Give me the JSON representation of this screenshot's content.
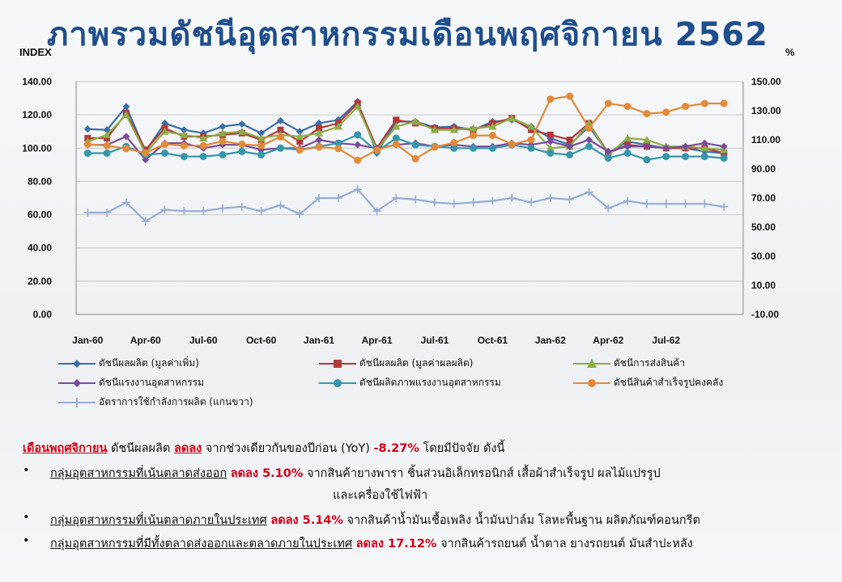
{
  "page": {
    "title": "ภาพรวมดัชนีอุตสาหกรรมเดือนพฤศจิกายน  2562",
    "left_unit": "INDEX",
    "right_unit": "%"
  },
  "chart_data": {
    "type": "line",
    "left_ylim": [
      0,
      140
    ],
    "right_ylim": [
      -10,
      150
    ],
    "left_ticks": [
      "0.00",
      "20.00",
      "40.00",
      "60.00",
      "80.00",
      "100.00",
      "120.00",
      "140.00"
    ],
    "right_ticks": [
      "-10.00",
      "10.00",
      "30.00",
      "50.00",
      "70.00",
      "90.00",
      "110.00",
      "130.00",
      "150.00"
    ],
    "x": [
      "Jan-60",
      "Feb-60",
      "Mar-60",
      "Apr-60",
      "May-60",
      "Jun-60",
      "Jul-60",
      "Aug-60",
      "Sep-60",
      "Oct-60",
      "Nov-60",
      "Dec-60",
      "Jan-61",
      "Feb-61",
      "Mar-61",
      "Apr-61",
      "May-61",
      "Jun-61",
      "Jul-61",
      "Aug-61",
      "Sep-61",
      "Oct-61",
      "Nov-61",
      "Dec-61",
      "Jan-62",
      "Feb-62",
      "Mar-62",
      "Apr-62",
      "May-62",
      "Jun-62",
      "Jul-62",
      "Aug-62",
      "Sep-62",
      "Oct-62"
    ],
    "x_tick_labels": [
      "Jan-60",
      "Apr-60",
      "Jul-60",
      "Oct-60",
      "Jan-61",
      "Apr-61",
      "Jul-61",
      "Oct-61",
      "Jan-62",
      "Apr-62",
      "Jul-62"
    ],
    "grid": true,
    "series": [
      {
        "name": "ดัชนีผลผลิต (มูลค่าเพิ่ม)",
        "axis": "left",
        "color": "#3a6fa8",
        "marker": "diamond",
        "values": [
          111.5,
          111,
          125,
          98,
          115,
          111,
          109,
          113,
          114.5,
          109,
          116.5,
          110,
          115,
          117,
          128,
          97,
          116,
          116,
          112.5,
          113,
          111,
          116,
          117,
          113,
          106,
          102,
          113,
          97,
          104,
          102,
          100,
          100,
          98,
          97
        ]
      },
      {
        "name": "ดัชนีผลผลิต (มูลค่าผลผลิต)",
        "axis": "left",
        "color": "#b03a3a",
        "marker": "square",
        "values": [
          106,
          106,
          121,
          99,
          112,
          107,
          107,
          108,
          109,
          105,
          111,
          104,
          112,
          115,
          127,
          100,
          117,
          115,
          112,
          112,
          111,
          115,
          118,
          111,
          108,
          105,
          115,
          97,
          102,
          101,
          100,
          100,
          100,
          97
        ]
      },
      {
        "name": "ดัชนีการส่งสินค้า",
        "axis": "left",
        "color": "#8cae48",
        "marker": "triangle",
        "values": [
          104,
          108,
          120,
          97,
          110,
          108,
          106,
          109,
          110,
          106,
          108,
          107,
          109,
          113,
          125,
          99,
          113,
          116,
          111,
          111,
          112,
          113,
          118,
          113,
          100,
          101,
          115,
          96,
          106,
          105,
          101,
          101,
          100,
          99
        ]
      },
      {
        "name": "ดัชนีแรงงานอุตสาหกรรม",
        "axis": "left",
        "color": "#7a4a9a",
        "marker": "diamond",
        "values": [
          102,
          102,
          107,
          93,
          103,
          103,
          100,
          102,
          102,
          99,
          100,
          100,
          105,
          103,
          102,
          100,
          102,
          103,
          101,
          102,
          101,
          101,
          103,
          102,
          104,
          101,
          105,
          98,
          101,
          101,
          100,
          101,
          103,
          101
        ]
      },
      {
        "name": "ดัชนีผลิตภาพแรงงานอุตสาหกรรม",
        "axis": "left",
        "color": "#3596aa",
        "marker": "circle",
        "values": [
          97,
          97,
          101,
          96,
          97,
          95,
          95,
          96,
          98,
          96,
          100,
          99,
          101,
          103,
          108,
          98,
          106,
          102,
          101,
          100,
          100,
          100,
          102,
          100,
          97,
          96,
          101,
          94,
          97,
          93,
          95,
          95,
          95,
          94
        ]
      },
      {
        "name": "ดัชนีสินค้าสำเร็จรูปคงคลัง",
        "axis": "right",
        "color": "#e08a3a",
        "marker": "circle",
        "values": [
          107,
          106,
          104,
          101,
          107,
          106,
          106,
          109,
          107,
          106,
          112,
          103,
          105,
          104,
          96,
          103,
          107,
          97,
          105,
          108,
          113,
          113,
          107,
          110,
          138,
          140,
          118,
          135,
          133,
          128,
          129,
          133,
          135,
          135
        ]
      },
      {
        "name": "อัตราการใช้กำลังการผลิต (แกนขวา)",
        "axis": "right",
        "color": "#96acd2",
        "marker": "cross",
        "values": [
          60,
          60,
          67,
          54,
          62,
          61,
          61,
          63,
          64,
          61,
          65,
          59,
          70,
          70,
          76,
          61,
          70,
          69,
          67,
          66,
          67,
          68,
          70,
          67,
          70,
          69,
          74,
          63,
          68,
          66,
          66,
          66,
          66,
          64
        ]
      }
    ]
  },
  "summary": {
    "heading_month": "เดือนพฤศจิกายน",
    "heading_text1": "ดัชนีผลผลิต",
    "heading_decline": "ลดลง",
    "heading_text2": "จากช่วงเดียวกันของปีก่อน (YoY)",
    "heading_value": "-8.27%",
    "heading_text3": "โดยมีปัจจัย ดังนี้",
    "bullet1_group": "กลุ่มอุตสาหกรรมที่เน้นตลาดส่งออก",
    "bullet1_decline": "ลดลง 5.10%",
    "bullet1_text": "จากสินค้ายางพารา ชิ้นส่วนอิเล็กทรอนิกส์ เสื้อผ้าสำเร็จรูป ผลไม้แปรรูป",
    "bullet1_text2": "และเครื่องใช้ไฟฟ้า",
    "bullet2_group": "กลุ่มอุตสาหกรรมที่เน้นตลาดภายในประเทศ",
    "bullet2_decline": "ลดลง  5.14%",
    "bullet2_text": "จากสินค้าน้ำมันเชื้อเพลิง น้ำมันปาล์ม โลหะพื้นฐาน ผลิตภัณฑ์คอนกรีต",
    "bullet3_group": "กลุ่มอุตสาหกรรมที่มีทั้งตลาดส่งออกและตลาดภายในประเทศ",
    "bullet3_decline": "ลดลง 17.12%",
    "bullet3_text": "จากสินค้ารถยนต์ น้ำตาล ยางรถยนต์ มันสำปะหลัง",
    "bullet_symbol": "•"
  }
}
